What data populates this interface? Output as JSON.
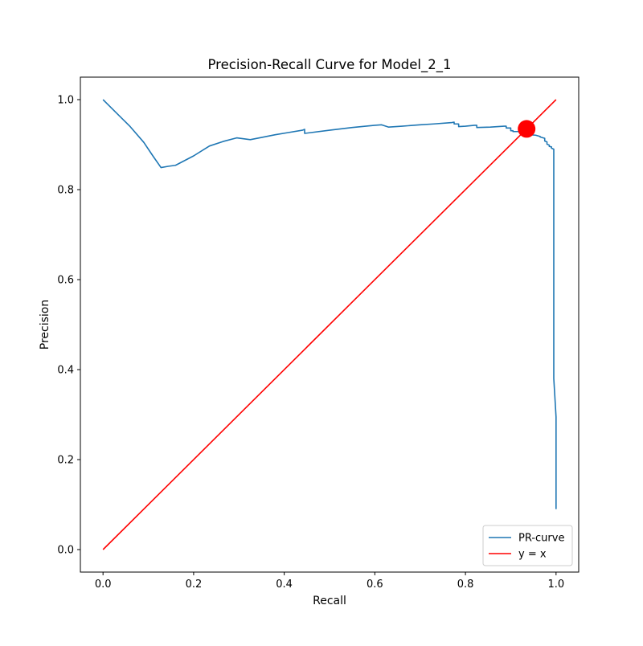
{
  "chart_data": {
    "type": "line",
    "title": "Precision-Recall Curve for Model_2_1",
    "xlabel": "Recall",
    "ylabel": "Precision",
    "xlim": [
      -0.05,
      1.05
    ],
    "ylim": [
      -0.05,
      1.05
    ],
    "x_ticks": [
      0.0,
      0.2,
      0.4,
      0.6,
      0.8,
      1.0
    ],
    "y_ticks": [
      0.0,
      0.2,
      0.4,
      0.6,
      0.8,
      1.0
    ],
    "x_tick_labels": [
      "0.0",
      "0.2",
      "0.4",
      "0.6",
      "0.8",
      "1.0"
    ],
    "y_tick_labels": [
      "0.0",
      "0.2",
      "0.4",
      "0.6",
      "0.8",
      "1.0"
    ],
    "grid": false,
    "legend_position": "lower-right",
    "series": [
      {
        "name": "PR-curve",
        "color": "#1f77b4",
        "x": [
          0.0,
          0.03,
          0.06,
          0.09,
          0.11,
          0.128,
          0.145,
          0.16,
          0.2,
          0.235,
          0.265,
          0.295,
          0.31,
          0.325,
          0.35,
          0.38,
          0.41,
          0.44,
          0.445,
          0.445,
          0.5,
          0.55,
          0.6,
          0.615,
          0.63,
          0.66,
          0.7,
          0.73,
          0.77,
          0.775,
          0.775,
          0.785,
          0.785,
          0.8,
          0.82,
          0.825,
          0.825,
          0.855,
          0.885,
          0.89,
          0.89,
          0.9,
          0.9,
          0.905,
          0.905,
          0.925,
          0.925,
          0.94,
          0.955,
          0.965,
          0.965,
          0.975,
          0.975,
          0.98,
          0.98,
          0.985,
          0.985,
          0.99,
          0.99,
          0.995,
          0.995,
          1.0,
          1.0
        ],
        "y": [
          1.0,
          0.97,
          0.94,
          0.905,
          0.875,
          0.849,
          0.852,
          0.854,
          0.875,
          0.897,
          0.907,
          0.915,
          0.913,
          0.911,
          0.916,
          0.922,
          0.927,
          0.932,
          0.934,
          0.925,
          0.932,
          0.938,
          0.943,
          0.944,
          0.939,
          0.941,
          0.944,
          0.946,
          0.949,
          0.95,
          0.946,
          0.946,
          0.94,
          0.941,
          0.943,
          0.943,
          0.938,
          0.939,
          0.941,
          0.941,
          0.937,
          0.937,
          0.931,
          0.931,
          0.929,
          0.929,
          0.924,
          0.922,
          0.921,
          0.918,
          0.917,
          0.914,
          0.908,
          0.906,
          0.901,
          0.899,
          0.896,
          0.895,
          0.892,
          0.89,
          0.38,
          0.295,
          0.09
        ]
      },
      {
        "name": "y = x",
        "color": "#ff0000",
        "x": [
          0.0,
          1.0
        ],
        "y": [
          0.0,
          1.0
        ]
      }
    ],
    "marker": {
      "x": 0.935,
      "y": 0.935,
      "color": "#ff0000"
    }
  }
}
